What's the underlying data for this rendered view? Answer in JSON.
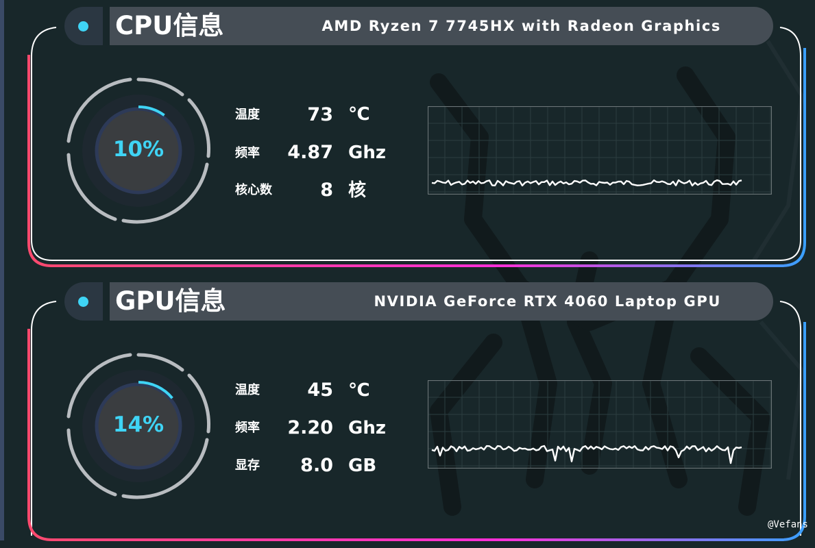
{
  "cpu": {
    "title": "CPU信息",
    "model": "AMD Ryzen 7 7745HX with Radeon Graphics",
    "usage": "10%",
    "usage_fraction": 0.1,
    "stats": [
      {
        "label": "温度",
        "value": "73",
        "unit": "℃"
      },
      {
        "label": "频率",
        "value": "4.87",
        "unit": "Ghz"
      },
      {
        "label": "核心数",
        "value": "8",
        "unit": "核"
      }
    ]
  },
  "gpu": {
    "title": "GPU信息",
    "model": "NVIDIA GeForce RTX 4060 Laptop GPU",
    "usage": "14%",
    "usage_fraction": 0.14,
    "stats": [
      {
        "label": "温度",
        "value": "45",
        "unit": "℃"
      },
      {
        "label": "频率",
        "value": "2.20",
        "unit": "Ghz"
      },
      {
        "label": "显存",
        "value": "8.0",
        "unit": "GB"
      }
    ]
  },
  "watermark": "@Vefans",
  "colors": {
    "accent": "#3fd4f5",
    "header_bar": "#454d55",
    "background": "#18272a",
    "gradient": [
      "#ff4a6e",
      "#ff2fd8",
      "#3aa0ff"
    ]
  }
}
